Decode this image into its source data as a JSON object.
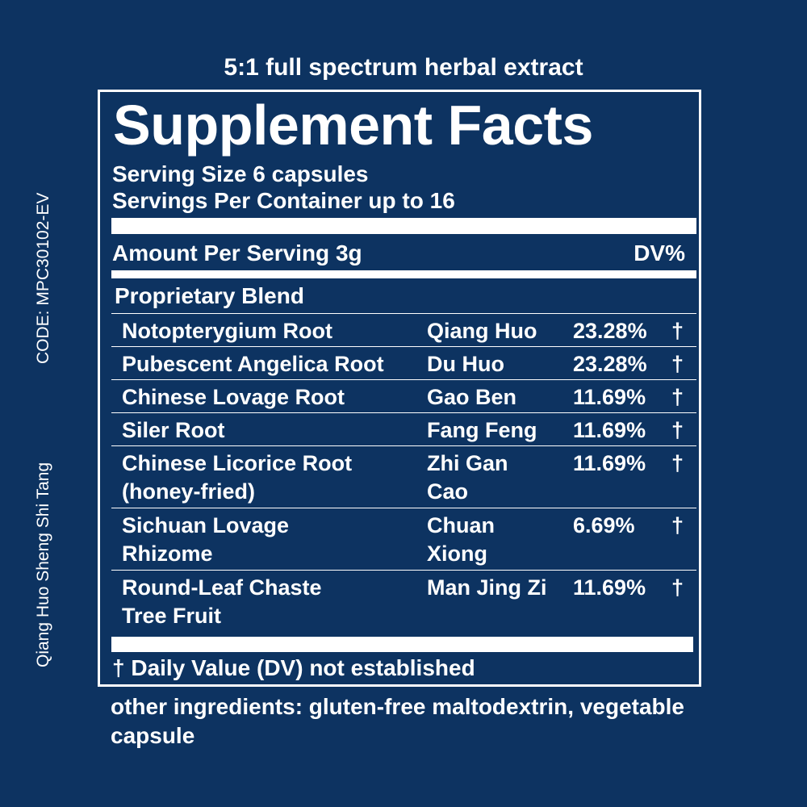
{
  "tagline": "5:1 full spectrum herbal extract",
  "side_code": "CODE: MPC30102-EV",
  "side_name": "Qiang Huo Sheng Shi Tang",
  "facts": {
    "title": "Supplement Facts",
    "serving_size": "Serving Size 6 capsules",
    "servings_per_container": "Servings Per Container up to 16",
    "amount_per_serving": "Amount Per Serving 3g",
    "dv_header": "DV%",
    "blend_label": "Proprietary Blend",
    "ingredients": [
      {
        "name": "Notopterygium Root",
        "pinyin": "Qiang Huo",
        "percent": "23.28%",
        "dv": "†"
      },
      {
        "name": "Pubescent Angelica Root",
        "pinyin": "Du Huo",
        "percent": "23.28%",
        "dv": "†"
      },
      {
        "name": "Chinese Lovage Root",
        "pinyin": "Gao Ben",
        "percent": "11.69%",
        "dv": "†"
      },
      {
        "name": "Siler Root",
        "pinyin": "Fang Feng",
        "percent": "11.69%",
        "dv": "†"
      },
      {
        "name": "Chinese Licorice Root (honey-fried)",
        "pinyin": "Zhi Gan Cao",
        "percent": "11.69%",
        "dv": "†"
      },
      {
        "name": "Sichuan Lovage Rhizome",
        "pinyin": "Chuan Xiong",
        "percent": "6.69%",
        "dv": "†"
      },
      {
        "name": "Round-Leaf Chaste Tree Fruit",
        "pinyin": "Man Jing Zi",
        "percent": "11.69%",
        "dv": "†"
      }
    ],
    "footnote": "† Daily Value (DV) not established"
  },
  "other_ingredients": "other ingredients: gluten-free maltodextrin, vegetable capsule",
  "colors": {
    "background": "#0d3361",
    "foreground": "#ffffff"
  }
}
